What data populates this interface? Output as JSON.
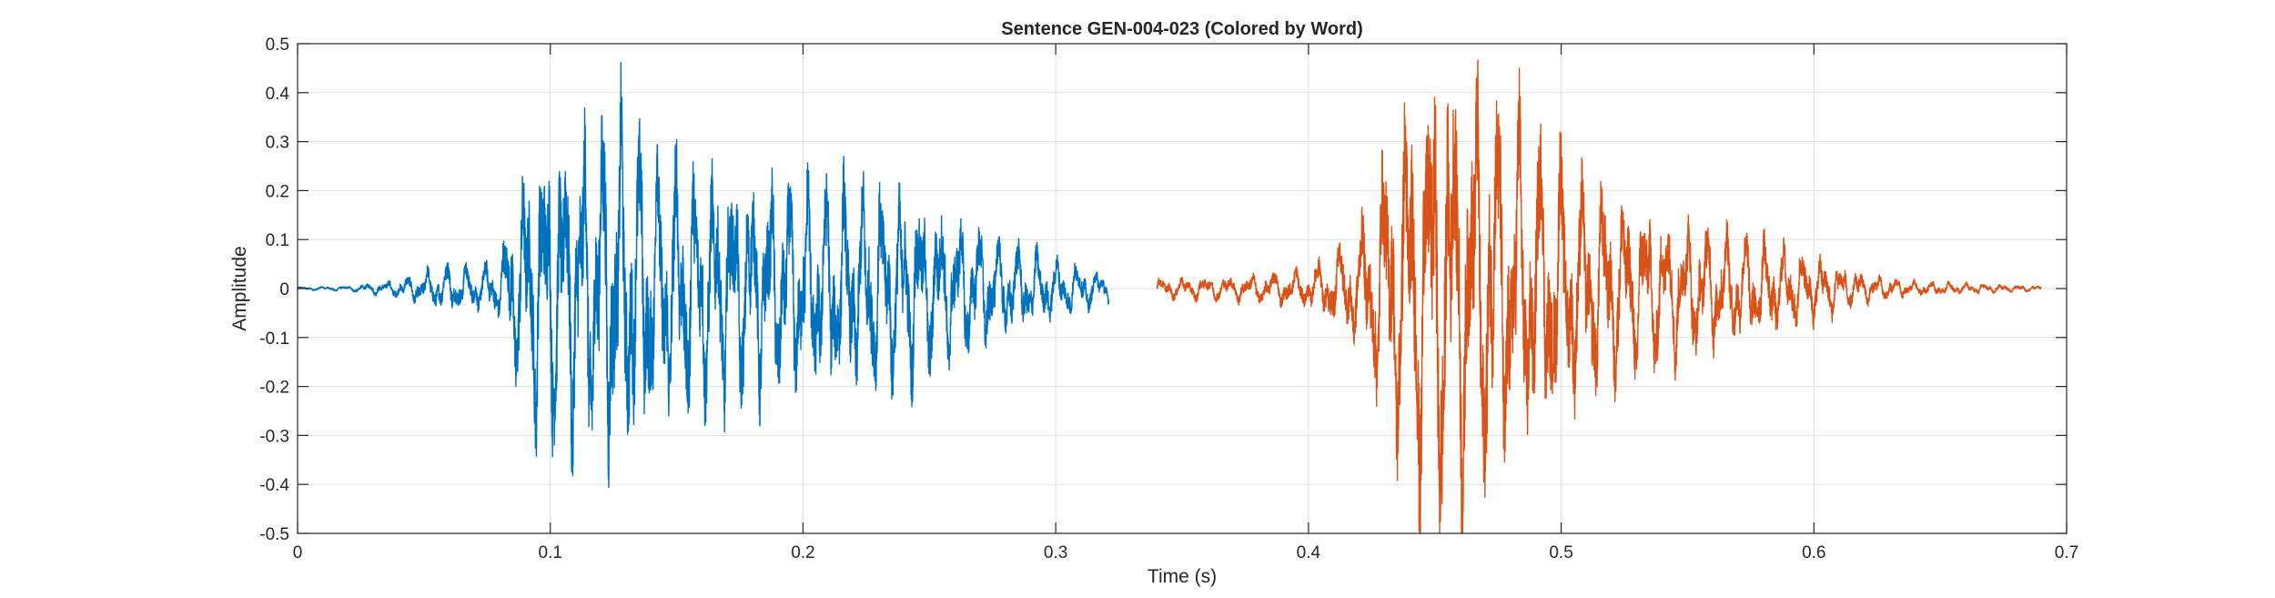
{
  "chart_data": {
    "type": "line",
    "title": "Sentence GEN-004-023 (Colored by Word)",
    "xlabel": "Time (s)",
    "ylabel": "Amplitude",
    "xlim": [
      0,
      0.7
    ],
    "ylim": [
      -0.5,
      0.5
    ],
    "grid": true,
    "x_ticks": [
      0,
      0.1,
      0.2,
      0.3,
      0.4,
      0.5,
      0.6,
      0.7
    ],
    "x_tick_labels": [
      "0",
      "0.1",
      "0.2",
      "0.3",
      "0.4",
      "0.5",
      "0.6",
      "0.7"
    ],
    "y_ticks": [
      0.5,
      0.4,
      0.3,
      0.2,
      0.1,
      0,
      -0.1,
      -0.2,
      -0.3,
      -0.4,
      -0.5
    ],
    "y_tick_labels": [
      "0.5",
      "0.4",
      "0.3",
      "0.2",
      "0.1",
      "0",
      "-0.1",
      "-0.2",
      "-0.3",
      "-0.4",
      "-0.5"
    ],
    "series": [
      {
        "color": "#0072BD",
        "t_start": 0,
        "t_end": 0.321,
        "envelope": [
          [
            0.0,
            0.003
          ],
          [
            0.02,
            0.005
          ],
          [
            0.04,
            0.018
          ],
          [
            0.05,
            0.035
          ],
          [
            0.06,
            0.05
          ],
          [
            0.07,
            0.045
          ],
          [
            0.08,
            0.06
          ],
          [
            0.085,
            0.18
          ],
          [
            0.095,
            0.3
          ],
          [
            0.11,
            0.33
          ],
          [
            0.125,
            0.37
          ],
          [
            0.14,
            0.3
          ],
          [
            0.16,
            0.25
          ],
          [
            0.18,
            0.22
          ],
          [
            0.2,
            0.22
          ],
          [
            0.22,
            0.21
          ],
          [
            0.24,
            0.2
          ],
          [
            0.26,
            0.15
          ],
          [
            0.28,
            0.1
          ],
          [
            0.3,
            0.06
          ],
          [
            0.321,
            0.03
          ]
        ]
      },
      {
        "color": "#D95319",
        "t_start": 0.34,
        "t_end": 0.69,
        "envelope": [
          [
            0.34,
            0.02
          ],
          [
            0.37,
            0.025
          ],
          [
            0.4,
            0.04
          ],
          [
            0.42,
            0.12
          ],
          [
            0.43,
            0.28
          ],
          [
            0.44,
            0.4
          ],
          [
            0.45,
            0.48
          ],
          [
            0.47,
            0.42
          ],
          [
            0.49,
            0.32
          ],
          [
            0.51,
            0.22
          ],
          [
            0.55,
            0.14
          ],
          [
            0.58,
            0.1
          ],
          [
            0.6,
            0.07
          ],
          [
            0.62,
            0.03
          ],
          [
            0.64,
            0.015
          ],
          [
            0.69,
            0.005
          ]
        ]
      }
    ]
  }
}
